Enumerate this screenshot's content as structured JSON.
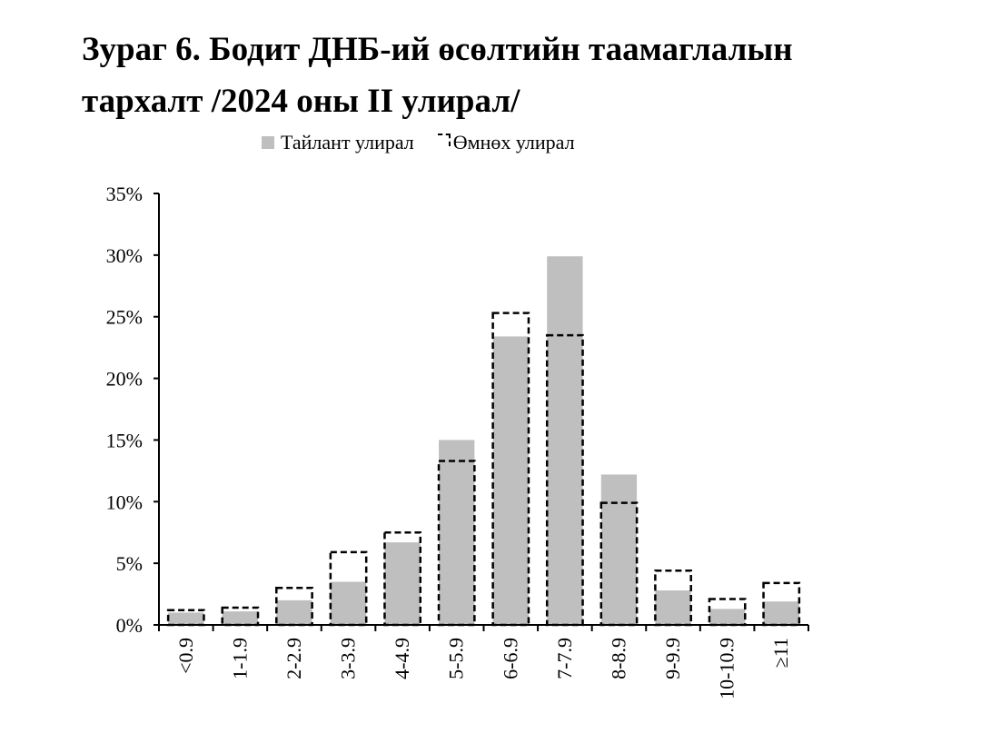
{
  "title": {
    "line1": "Зураг 6. Бодит ДНБ-ий өсөлтийн таамаглалын",
    "line2": "тархалт /2024 оны II улирал/"
  },
  "legend": {
    "current": "Тайлант улирал",
    "previous": "Өмнөх улирал"
  },
  "colors": {
    "current_fill": "#bfbfbf",
    "previous_stroke": "#000000"
  },
  "chart_data": {
    "type": "bar",
    "title": "Зураг 6. Бодит ДНБ-ий өсөлтийн таамаглалын тархалт /2024 оны II улирал/",
    "categories": [
      "<0.9",
      "1-1.9",
      "2-2.9",
      "3-3.9",
      "4-4.9",
      "5-5.9",
      "6-6.9",
      "7-7.9",
      "8-8.9",
      "9-9.9",
      "10-10.9",
      "≥11"
    ],
    "series": [
      {
        "name": "Тайлант улирал",
        "style": "solid-gray",
        "values": [
          1.0,
          1.1,
          2.0,
          3.5,
          6.7,
          15.0,
          23.4,
          29.9,
          12.2,
          2.8,
          1.3,
          1.9
        ]
      },
      {
        "name": "Өмнөх улирал",
        "style": "dashed-outline",
        "values": [
          1.2,
          1.4,
          3.0,
          5.9,
          7.5,
          13.3,
          25.3,
          23.5,
          9.9,
          4.4,
          2.1,
          3.4
        ]
      }
    ],
    "ylim": [
      0,
      35
    ],
    "yticks": [
      "0%",
      "5%",
      "10%",
      "15%",
      "20%",
      "25%",
      "30%",
      "35%"
    ],
    "xlabel": "",
    "ylabel": "",
    "legend_position": "top",
    "grid": false
  }
}
